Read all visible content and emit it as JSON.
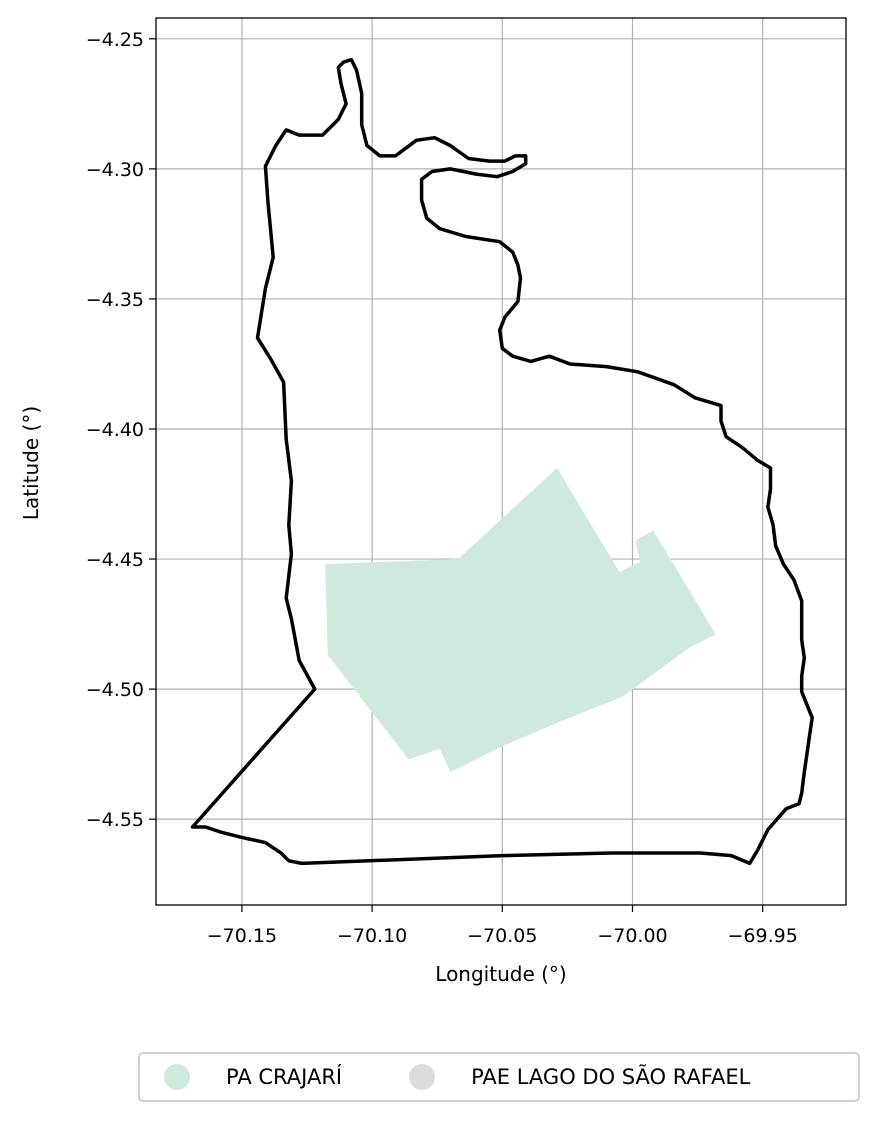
{
  "chart_data": {
    "type": "map",
    "xlabel": "Longitude (°)",
    "ylabel": "Latitude (°)",
    "xlim": [
      -70.183,
      -69.918
    ],
    "ylim": [
      -4.583,
      -4.242
    ],
    "xticks": [
      -70.15,
      -70.1,
      -70.05,
      -70.0,
      -69.95
    ],
    "xtick_labels": [
      "−70.15",
      "−70.10",
      "−70.05",
      "−70.00",
      "−69.95"
    ],
    "yticks": [
      -4.25,
      -4.3,
      -4.35,
      -4.4,
      -4.45,
      -4.5,
      -4.55
    ],
    "ytick_labels": [
      "−4.25",
      "−4.30",
      "−4.35",
      "−4.40",
      "−4.45",
      "−4.50",
      "−4.55"
    ],
    "grid": true,
    "legend_position": "bottom-center",
    "layers": [
      {
        "name": "PA CRAJARÍ",
        "kind": "polygon-fill",
        "color": "#cfeadd",
        "coords": [
          [
            -70.118,
            -4.452
          ],
          [
            -70.067,
            -4.45
          ],
          [
            -70.029,
            -4.415
          ],
          [
            -70.005,
            -4.455
          ],
          [
            -69.997,
            -4.451
          ],
          [
            -69.999,
            -4.443
          ],
          [
            -69.992,
            -4.439
          ],
          [
            -69.968,
            -4.479
          ],
          [
            -69.978,
            -4.484
          ],
          [
            -70.004,
            -4.503
          ],
          [
            -70.029,
            -4.513
          ],
          [
            -70.05,
            -4.522
          ],
          [
            -70.07,
            -4.532
          ],
          [
            -70.074,
            -4.523
          ],
          [
            -70.086,
            -4.527
          ],
          [
            -70.117,
            -4.487
          ]
        ]
      },
      {
        "name": "PAE LAGO DO SÃO RAFAEL",
        "kind": "outline",
        "fill": "#dcdcdc",
        "stroke": "#000000",
        "coords": [
          [
            -70.111,
            -4.259
          ],
          [
            -70.108,
            -4.258
          ],
          [
            -70.106,
            -4.262
          ],
          [
            -70.104,
            -4.271
          ],
          [
            -70.104,
            -4.283
          ],
          [
            -70.102,
            -4.291
          ],
          [
            -70.097,
            -4.295
          ],
          [
            -70.091,
            -4.295
          ],
          [
            -70.083,
            -4.289
          ],
          [
            -70.076,
            -4.288
          ],
          [
            -70.07,
            -4.291
          ],
          [
            -70.063,
            -4.296
          ],
          [
            -70.055,
            -4.297
          ],
          [
            -70.049,
            -4.297
          ],
          [
            -70.045,
            -4.295
          ],
          [
            -70.041,
            -4.295
          ],
          [
            -70.041,
            -4.298
          ],
          [
            -70.046,
            -4.301
          ],
          [
            -70.052,
            -4.303
          ],
          [
            -70.06,
            -4.302
          ],
          [
            -70.07,
            -4.3
          ],
          [
            -70.077,
            -4.301
          ],
          [
            -70.081,
            -4.304
          ],
          [
            -70.081,
            -4.312
          ],
          [
            -70.079,
            -4.319
          ],
          [
            -70.074,
            -4.323
          ],
          [
            -70.064,
            -4.326
          ],
          [
            -70.051,
            -4.328
          ],
          [
            -70.046,
            -4.332
          ],
          [
            -70.044,
            -4.337
          ],
          [
            -70.043,
            -4.342
          ],
          [
            -70.044,
            -4.351
          ],
          [
            -70.049,
            -4.357
          ],
          [
            -70.051,
            -4.362
          ],
          [
            -70.05,
            -4.369
          ],
          [
            -70.046,
            -4.372
          ],
          [
            -70.039,
            -4.374
          ],
          [
            -70.032,
            -4.372
          ],
          [
            -70.024,
            -4.375
          ],
          [
            -70.01,
            -4.376
          ],
          [
            -69.998,
            -4.378
          ],
          [
            -69.984,
            -4.383
          ],
          [
            -69.976,
            -4.388
          ],
          [
            -69.966,
            -4.391
          ],
          [
            -69.966,
            -4.397
          ],
          [
            -69.964,
            -4.403
          ],
          [
            -69.958,
            -4.407
          ],
          [
            -69.952,
            -4.412
          ],
          [
            -69.947,
            -4.415
          ],
          [
            -69.947,
            -4.423
          ],
          [
            -69.948,
            -4.43
          ],
          [
            -69.946,
            -4.437
          ],
          [
            -69.945,
            -4.445
          ],
          [
            -69.942,
            -4.452
          ],
          [
            -69.938,
            -4.458
          ],
          [
            -69.935,
            -4.466
          ],
          [
            -69.935,
            -4.473
          ],
          [
            -69.935,
            -4.481
          ],
          [
            -69.934,
            -4.488
          ],
          [
            -69.935,
            -4.495
          ],
          [
            -69.935,
            -4.501
          ],
          [
            -69.933,
            -4.506
          ],
          [
            -69.931,
            -4.511
          ],
          [
            -69.932,
            -4.518
          ],
          [
            -69.933,
            -4.525
          ],
          [
            -69.934,
            -4.532
          ],
          [
            -69.935,
            -4.54
          ],
          [
            -69.936,
            -4.544
          ],
          [
            -69.941,
            -4.546
          ],
          [
            -69.948,
            -4.554
          ],
          [
            -69.952,
            -4.562
          ],
          [
            -69.955,
            -4.567
          ],
          [
            -69.962,
            -4.564
          ],
          [
            -69.974,
            -4.563
          ],
          [
            -70.008,
            -4.563
          ],
          [
            -70.05,
            -4.564
          ],
          [
            -70.127,
            -4.567
          ],
          [
            -70.132,
            -4.566
          ],
          [
            -70.135,
            -4.563
          ],
          [
            -70.141,
            -4.559
          ],
          [
            -70.15,
            -4.557
          ],
          [
            -70.158,
            -4.555
          ],
          [
            -70.164,
            -4.553
          ],
          [
            -70.169,
            -4.553
          ],
          [
            -70.122,
            -4.5
          ],
          [
            -70.128,
            -4.489
          ],
          [
            -70.131,
            -4.473
          ],
          [
            -70.133,
            -4.465
          ],
          [
            -70.131,
            -4.448
          ],
          [
            -70.132,
            -4.437
          ],
          [
            -70.131,
            -4.42
          ],
          [
            -70.133,
            -4.404
          ],
          [
            -70.134,
            -4.382
          ],
          [
            -70.139,
            -4.373
          ],
          [
            -70.144,
            -4.365
          ],
          [
            -70.141,
            -4.346
          ],
          [
            -70.138,
            -4.334
          ],
          [
            -70.14,
            -4.313
          ],
          [
            -70.141,
            -4.299
          ],
          [
            -70.137,
            -4.291
          ],
          [
            -70.133,
            -4.285
          ],
          [
            -70.128,
            -4.287
          ],
          [
            -70.119,
            -4.287
          ],
          [
            -70.113,
            -4.281
          ],
          [
            -70.11,
            -4.275
          ],
          [
            -70.112,
            -4.267
          ],
          [
            -70.113,
            -4.261
          ],
          [
            -70.111,
            -4.259
          ]
        ]
      }
    ],
    "legend": [
      {
        "label": "PA CRAJARÍ",
        "color": "#cfeadd"
      },
      {
        "label": "PAE LAGO DO SÃO RAFAEL",
        "color": "#dcdcdc"
      }
    ]
  }
}
